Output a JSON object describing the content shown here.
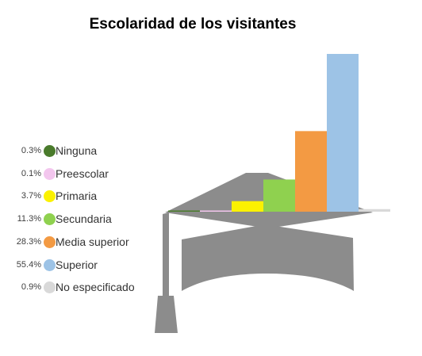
{
  "chart_data": {
    "type": "bar",
    "title": "Escolaridad de los visitantes",
    "categories": [
      "Ninguna",
      "Preescolar",
      "Primaria",
      "Secundaria",
      "Media superior",
      "Superior",
      "No especificado"
    ],
    "values": [
      0.3,
      0.1,
      3.7,
      11.3,
      28.3,
      55.4,
      0.9
    ],
    "labels": [
      "0.3%",
      "0.1%",
      "3.7%",
      "11.3%",
      "28.3%",
      "55.4%",
      "0.9%"
    ],
    "colors": [
      "#4a7b2c",
      "#f3c6ee",
      "#fbf100",
      "#8fd14f",
      "#f39a43",
      "#9dc3e6",
      "#d9d9d9"
    ],
    "unit": "%",
    "legend_position": "left",
    "ylim": [
      0,
      55.4
    ]
  }
}
